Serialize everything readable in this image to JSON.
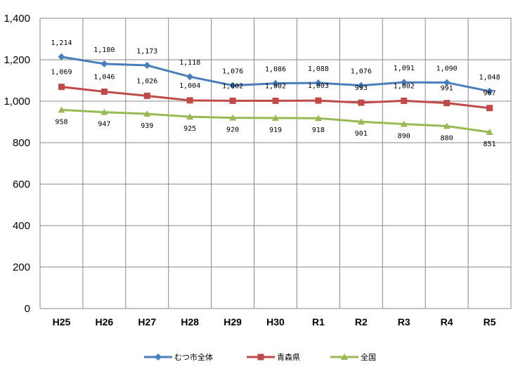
{
  "chart_data": {
    "type": "line",
    "categories": [
      "H25",
      "H26",
      "H27",
      "H28",
      "H29",
      "H30",
      "R1",
      "R2",
      "R3",
      "R4",
      "R5"
    ],
    "series": [
      {
        "name": "むつ市全体",
        "color": "#4a7ebb",
        "marker": "diamond",
        "values": [
          1214,
          1180,
          1173,
          1118,
          1076,
          1086,
          1088,
          1076,
          1091,
          1090,
          1048
        ],
        "labels": [
          "1,214",
          "1,180",
          "1,173",
          "1,118",
          "1,076",
          "1,086",
          "1,088",
          "1,076",
          "1,091",
          "1,090",
          "1,048"
        ]
      },
      {
        "name": "青森県",
        "color": "#be4b48",
        "marker": "square",
        "values": [
          1069,
          1046,
          1026,
          1004,
          1002,
          1002,
          1003,
          993,
          1002,
          991,
          967
        ],
        "labels": [
          "1,069",
          "1,046",
          "1,026",
          "1,004",
          "1,002",
          "1,002",
          "1,003",
          "993",
          "1,002",
          "991",
          "967"
        ]
      },
      {
        "name": "全国",
        "color": "#98b954",
        "marker": "triangle",
        "values": [
          958,
          947,
          939,
          925,
          920,
          919,
          918,
          901,
          890,
          880,
          851
        ],
        "labels": [
          "958",
          "947",
          "939",
          "925",
          "920",
          "919",
          "918",
          "901",
          "890",
          "880",
          "851"
        ]
      }
    ],
    "ylim": [
      0,
      1400
    ],
    "yticks": [
      0,
      200,
      400,
      600,
      800,
      1000,
      1200,
      1400
    ],
    "ytick_labels": [
      "0",
      "200",
      "400",
      "600",
      "800",
      "1,000",
      "1,200",
      "1,400"
    ],
    "grid": true,
    "legend_position": "bottom"
  }
}
